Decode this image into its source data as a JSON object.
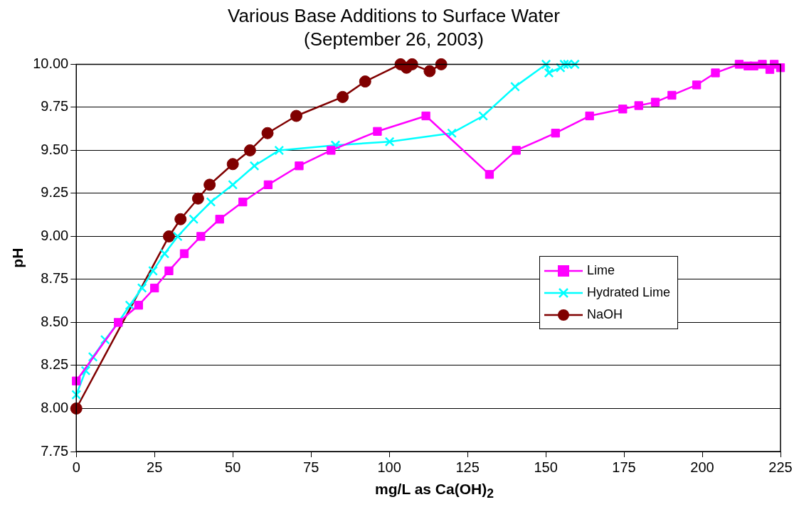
{
  "chart_data": {
    "type": "line",
    "title": "Various Base Additions to Surface Water",
    "subtitle": "(September 26, 2003)",
    "xlabel": "mg/L as Ca(OH)$_{2}$",
    "ylabel": "pH",
    "xlim": [
      0,
      225
    ],
    "xticks": [
      0,
      25,
      50,
      75,
      100,
      125,
      150,
      175,
      200,
      225
    ],
    "ylim": [
      7.75,
      10
    ],
    "yticks": [
      {
        "value": 7.75,
        "label": "7.75"
      },
      {
        "value": 8,
        "label": "8.00"
      },
      {
        "value": 8.25,
        "label": "8.25"
      },
      {
        "value": 8.5,
        "label": "8.50"
      },
      {
        "value": 8.75,
        "label": "8.75"
      },
      {
        "value": 9,
        "label": "9.00"
      },
      {
        "value": 9.25,
        "label": "9.25"
      },
      {
        "value": 9.5,
        "label": "9.50"
      },
      {
        "value": 9.75,
        "label": "9.75"
      },
      {
        "value": 10,
        "label": "10.00"
      }
    ],
    "grid": "y",
    "legend": "right",
    "series": [
      {
        "name": "Lime",
        "color": "#ff00ff",
        "marker": "square",
        "x": [
          0,
          13.4,
          19.9,
          25,
          29.6,
          34.5,
          39.8,
          45.8,
          53.2,
          61.3,
          71.2,
          81.4,
          96.2,
          111.7,
          132,
          140.6,
          153.1,
          164,
          174.6,
          179.7,
          185,
          190.3,
          198.2,
          204.2,
          211.8,
          214.6,
          216.5,
          219.2,
          221.6,
          223,
          225
        ],
        "values": [
          8.16,
          8.5,
          8.6,
          8.7,
          8.8,
          8.9,
          9.0,
          9.1,
          9.2,
          9.3,
          9.41,
          9.5,
          9.61,
          9.7,
          9.36,
          9.5,
          9.6,
          9.7,
          9.74,
          9.76,
          9.78,
          9.82,
          9.88,
          9.95,
          10.0,
          9.99,
          9.99,
          10.0,
          9.97,
          10.0,
          9.98
        ]
      },
      {
        "name": "Hydrated Lime",
        "color": "#00ffff",
        "marker": "cross",
        "x": [
          0,
          3,
          5.3,
          9.2,
          13.4,
          17.1,
          21,
          24.5,
          28.2,
          32.4,
          37.5,
          43,
          50,
          56.9,
          64.8,
          82.8,
          100.1,
          120,
          130,
          140.2,
          150.1,
          151,
          154.7,
          155.9,
          157,
          159.3
        ],
        "values": [
          8.08,
          8.22,
          8.3,
          8.4,
          8.5,
          8.6,
          8.7,
          8.8,
          8.9,
          9.0,
          9.1,
          9.2,
          9.3,
          9.41,
          9.5,
          9.53,
          9.55,
          9.6,
          9.7,
          9.87,
          10.0,
          9.95,
          9.98,
          10.0,
          10.0,
          10.0
        ]
      },
      {
        "name": "NaOH",
        "color": "#800000",
        "marker": "circle",
        "x": [
          0,
          29.6,
          33.3,
          38.9,
          42.6,
          50,
          55.5,
          61.1,
          70.3,
          85.1,
          92.3,
          103.6,
          105.5,
          107.3,
          112.9,
          116.6
        ],
        "values": [
          8.0,
          9.0,
          9.1,
          9.22,
          9.3,
          9.42,
          9.5,
          9.6,
          9.7,
          9.81,
          9.9,
          10.0,
          9.98,
          10.0,
          9.96,
          10.0
        ]
      }
    ]
  }
}
